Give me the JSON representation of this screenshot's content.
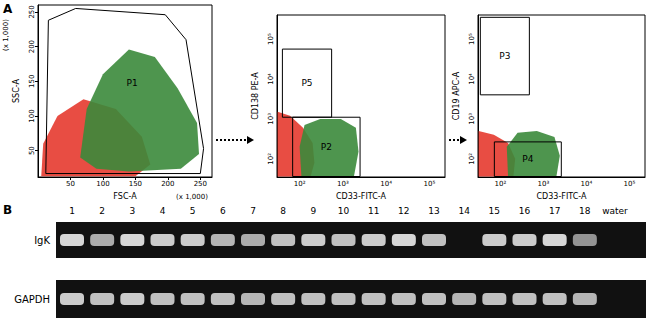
{
  "panel_labels": [
    "A",
    "B"
  ],
  "chart_data": [
    {
      "type": "scatter",
      "x_label": "FSC-A",
      "y_label": "SSC-A",
      "x_unit": "(x 1,000)",
      "y_unit": "(x 1,000)",
      "xlim": [
        0,
        268
      ],
      "ylim": [
        12,
        260
      ],
      "xticks": [
        50,
        100,
        150,
        200,
        250
      ],
      "yticks": [
        50,
        100,
        150,
        200,
        250
      ],
      "populations": [
        {
          "color": "#e53a2f",
          "outline": [
            [
              5,
              13
            ],
            [
              8,
              60
            ],
            [
              30,
              100
            ],
            [
              70,
              124
            ],
            [
              120,
              110
            ],
            [
              160,
              70
            ],
            [
              173,
              30
            ],
            [
              150,
              13
            ]
          ]
        },
        {
          "color": "#3b8a3b",
          "outline": [
            [
              65,
              40
            ],
            [
              75,
              110
            ],
            [
              100,
              160
            ],
            [
              140,
              196
            ],
            [
              180,
              185
            ],
            [
              215,
              140
            ],
            [
              245,
              90
            ],
            [
              248,
              45
            ],
            [
              220,
              24
            ],
            [
              140,
              20
            ],
            [
              90,
              24
            ]
          ]
        }
      ],
      "gates": [
        {
          "name": "P1",
          "points": [
            [
              12,
              17
            ],
            [
              16,
              238
            ],
            [
              58,
              255
            ],
            [
              196,
              246
            ],
            [
              228,
              210
            ],
            [
              255,
              53
            ],
            [
              250,
              17
            ]
          ]
        }
      ]
    },
    {
      "type": "scatter",
      "log": true,
      "x_label": "CD33-FITC-A",
      "y_label": "CD138 PE-A",
      "xlim": [
        30,
        230000
      ],
      "ylim": [
        35,
        400000
      ],
      "xticks": [
        {
          "value": 100,
          "label": "10²"
        },
        {
          "value": 1000,
          "label": "10³"
        },
        {
          "value": 10000,
          "label": "10⁴"
        },
        {
          "value": 100000,
          "label": "10⁵"
        }
      ],
      "yticks": [
        {
          "value": 100,
          "label": "10²"
        },
        {
          "value": 1000,
          "label": "10³"
        },
        {
          "value": 10000,
          "label": "10⁴"
        },
        {
          "value": 100000,
          "label": "10⁵"
        }
      ],
      "populations": [
        {
          "color": "#e53a2f",
          "outline": [
            [
              31,
              36
            ],
            [
              31,
              1500
            ],
            [
              60,
              1200
            ],
            [
              120,
              600
            ],
            [
              200,
              250
            ],
            [
              220,
              80
            ],
            [
              180,
              36
            ]
          ]
        },
        {
          "color": "#3b8a3b",
          "outline": [
            [
              110,
              36
            ],
            [
              100,
              200
            ],
            [
              130,
              700
            ],
            [
              300,
              1000
            ],
            [
              900,
              1000
            ],
            [
              2000,
              600
            ],
            [
              2300,
              150
            ],
            [
              1800,
              36
            ]
          ]
        }
      ],
      "gates": [
        {
          "name": "P5",
          "x": [
            40,
            550
          ],
          "y": [
            1100,
            56000
          ]
        },
        {
          "name": "P2",
          "x": [
            69,
            2500
          ],
          "y": [
            36,
            1100
          ]
        }
      ]
    },
    {
      "type": "scatter",
      "log": true,
      "x_label": "CD33-FITC-A",
      "y_label": "CD19 APC-A",
      "xlim": [
        30,
        230000
      ],
      "ylim": [
        35,
        400000
      ],
      "xticks": [
        {
          "value": 100,
          "label": "10²"
        },
        {
          "value": 1000,
          "label": "10³"
        },
        {
          "value": 10000,
          "label": "10⁴"
        },
        {
          "value": 100000,
          "label": "10⁵"
        }
      ],
      "yticks": [
        {
          "value": 100,
          "label": "10²"
        },
        {
          "value": 1000,
          "label": "10³"
        },
        {
          "value": 10000,
          "label": "10⁴"
        },
        {
          "value": 100000,
          "label": "10⁵"
        }
      ],
      "populations": [
        {
          "color": "#e53a2f",
          "outline": [
            [
              31,
              36
            ],
            [
              31,
              500
            ],
            [
              70,
              400
            ],
            [
              150,
              250
            ],
            [
              220,
              100
            ],
            [
              200,
              36
            ]
          ]
        },
        {
          "color": "#3b8a3b",
          "outline": [
            [
              150,
              36
            ],
            [
              140,
              200
            ],
            [
              250,
              450
            ],
            [
              700,
              500
            ],
            [
              1800,
              350
            ],
            [
              2400,
              120
            ],
            [
              2000,
              36
            ]
          ]
        }
      ],
      "gates": [
        {
          "name": "P3",
          "x": [
            34,
            470
          ],
          "y": [
            4000,
            350000
          ]
        },
        {
          "name": "P4",
          "x": [
            72,
            2600
          ],
          "y": [
            36,
            265
          ]
        }
      ]
    }
  ],
  "gel": {
    "lanes": [
      "1",
      "2",
      "3",
      "4",
      "5",
      "6",
      "7",
      "8",
      "9",
      "10",
      "11",
      "12",
      "13",
      "14",
      "15",
      "16",
      "17",
      "18",
      "water"
    ],
    "rows": [
      {
        "label": "IgK",
        "bands": [
          0.9,
          0.7,
          0.9,
          0.85,
          0.85,
          0.75,
          0.7,
          0.8,
          0.85,
          0.8,
          0.85,
          0.9,
          0.8,
          0,
          0.85,
          0.85,
          0.9,
          0.6,
          0
        ]
      },
      {
        "label": "GAPDH",
        "bands": [
          0.85,
          0.8,
          0.85,
          0.8,
          0.8,
          0.8,
          0.75,
          0.8,
          0.8,
          0.8,
          0.8,
          0.8,
          0.8,
          0.75,
          0.8,
          0.8,
          0.8,
          0.75,
          0
        ]
      }
    ]
  }
}
